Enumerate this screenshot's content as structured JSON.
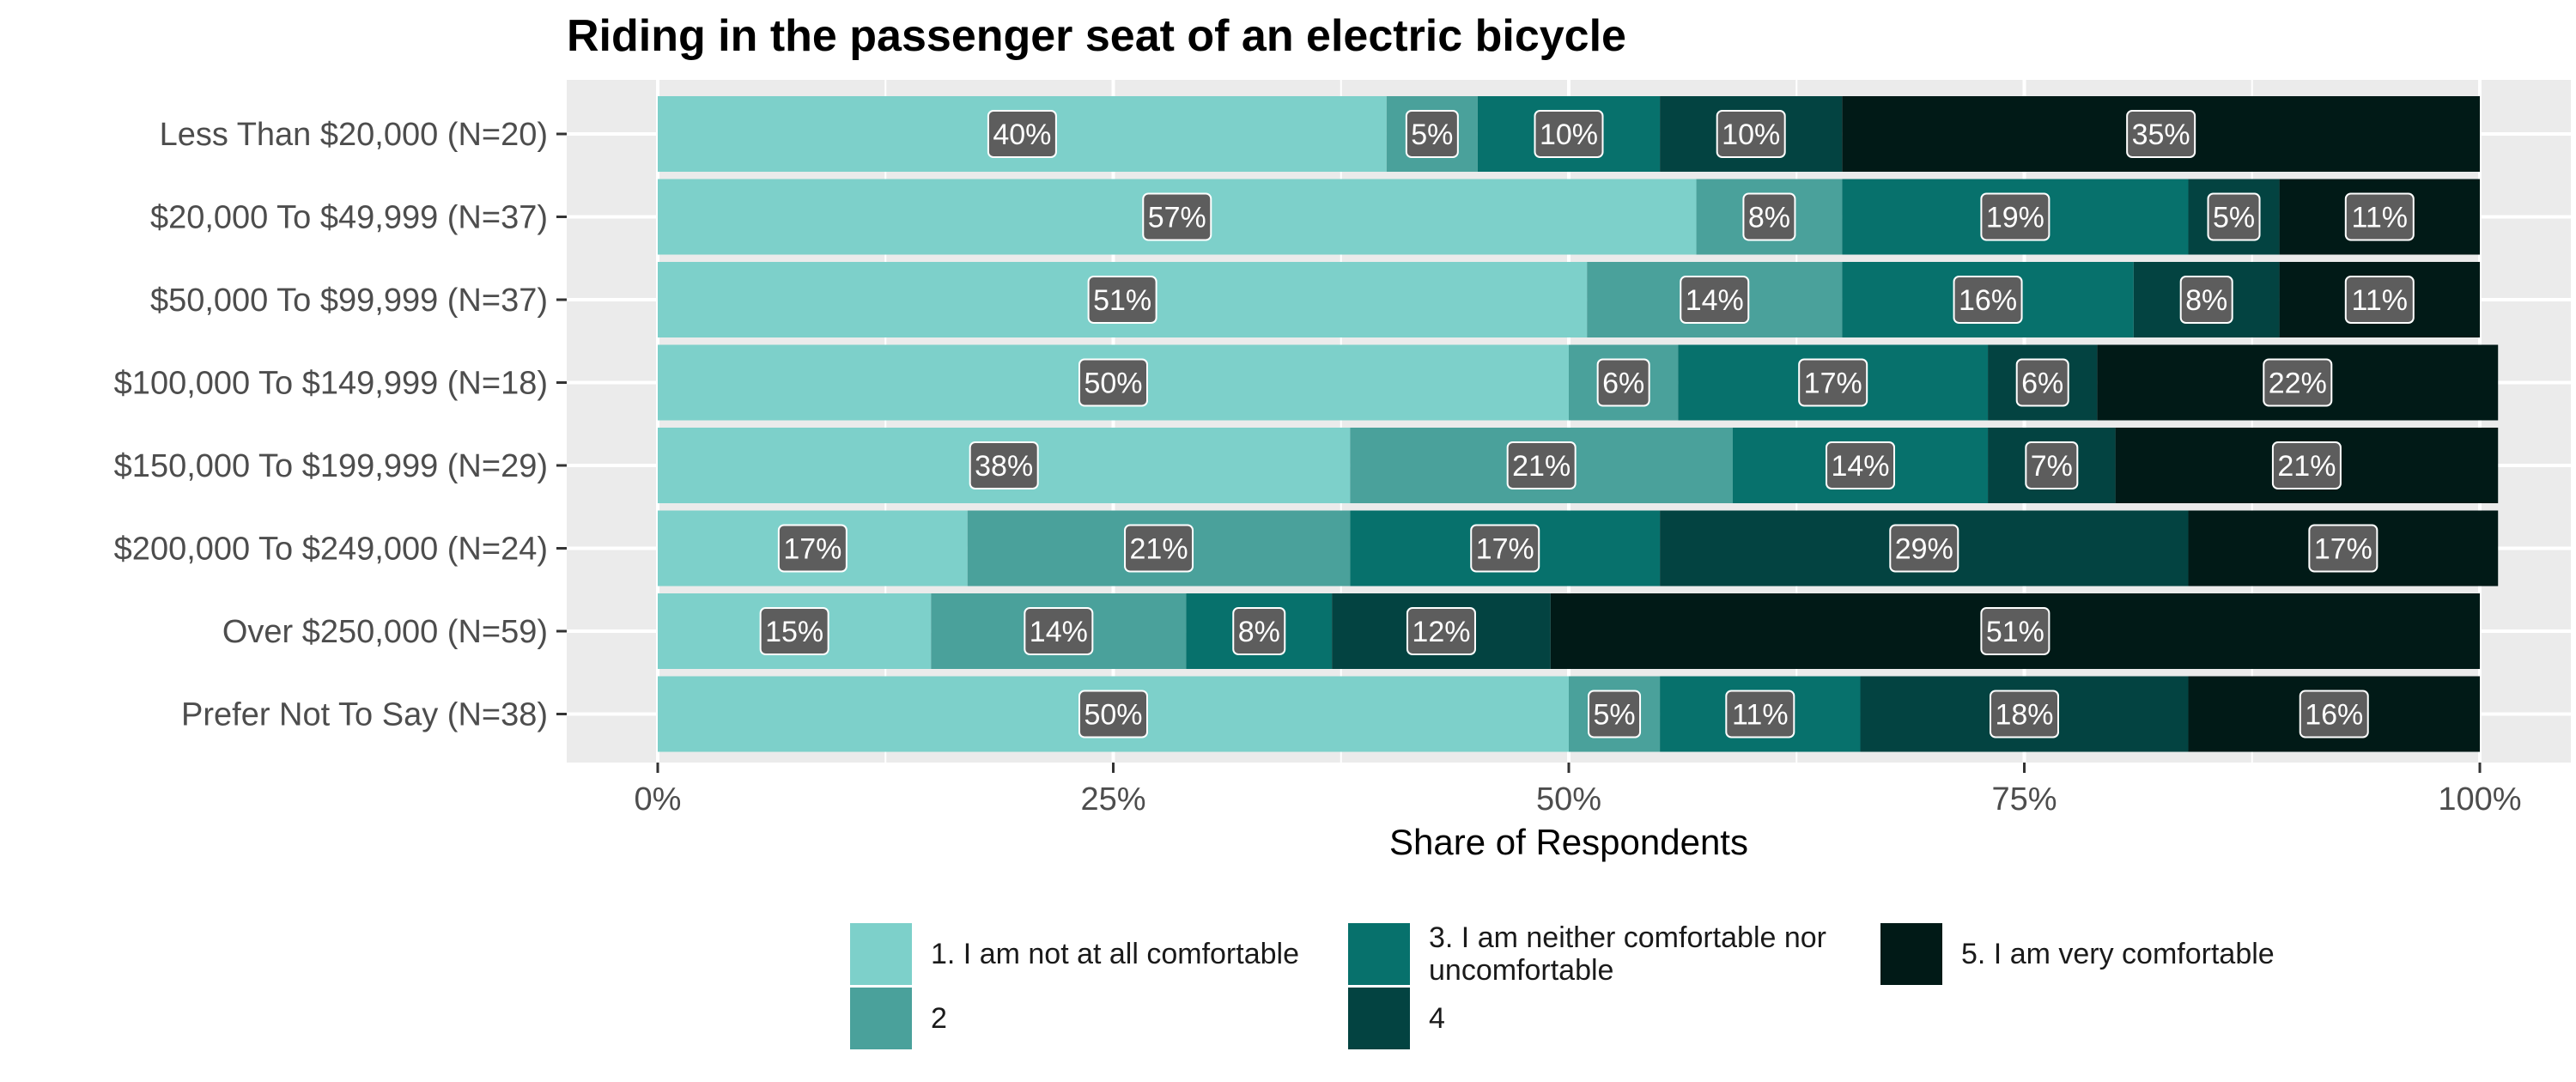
{
  "chart_data": {
    "type": "bar",
    "orientation": "horizontal",
    "stacked": true,
    "title": "Riding in the passenger seat of an electric bicycle",
    "xlabel": "Share of Respondents",
    "ylabel": "",
    "xlim": [
      0,
      100
    ],
    "x_ticks": [
      0,
      25,
      50,
      75,
      100
    ],
    "x_tick_labels": [
      "0%",
      "25%",
      "50%",
      "75%",
      "100%"
    ],
    "grid": true,
    "legend_position": "bottom",
    "categories": [
      "Less Than $20,000 (N=20)",
      "$20,000 To $49,999 (N=37)",
      "$50,000 To $99,999 (N=37)",
      "$100,000 To $149,999 (N=18)",
      "$150,000 To $199,999 (N=29)",
      "$200,000 To $249,000 (N=24)",
      "Over $250,000 (N=59)",
      "Prefer Not To Say (N=38)"
    ],
    "series": [
      {
        "name": "1. I am not at all comfortable",
        "color": "#7dd0ca",
        "values": [
          40,
          57,
          51,
          50,
          38,
          17,
          15,
          50
        ]
      },
      {
        "name": "2",
        "color": "#4aa19b",
        "values": [
          5,
          8,
          14,
          6,
          21,
          21,
          14,
          5
        ]
      },
      {
        "name": "3. I am neither comfortable nor uncomfortable",
        "color": "#07716c",
        "values": [
          10,
          19,
          16,
          17,
          14,
          17,
          8,
          11
        ]
      },
      {
        "name": "4",
        "color": "#034341",
        "values": [
          10,
          5,
          8,
          6,
          7,
          29,
          12,
          18
        ]
      },
      {
        "name": "5. I am very comfortable",
        "color": "#011a17",
        "values": [
          35,
          11,
          11,
          22,
          21,
          17,
          51,
          16
        ]
      }
    ],
    "data_labels": [
      [
        "40%",
        "5%",
        "10%",
        "10%",
        "35%"
      ],
      [
        "57%",
        "8%",
        "19%",
        "5%",
        "11%"
      ],
      [
        "51%",
        "14%",
        "16%",
        "8%",
        "11%"
      ],
      [
        "50%",
        "6%",
        "17%",
        "6%",
        "22%"
      ],
      [
        "38%",
        "21%",
        "14%",
        "7%",
        "21%"
      ],
      [
        "17%",
        "21%",
        "17%",
        "29%",
        "17%"
      ],
      [
        "15%",
        "14%",
        "8%",
        "12%",
        "51%"
      ],
      [
        "50%",
        "5%",
        "11%",
        "18%",
        "16%"
      ]
    ],
    "legend_labels": [
      [
        "1. I am not at all comfortable"
      ],
      [
        "2"
      ],
      [
        "3. I am neither comfortable nor",
        "uncomfortable"
      ],
      [
        "4"
      ],
      [
        "5. I am very comfortable"
      ]
    ],
    "colors": {
      "panel_background": "#ebebeb",
      "grid_major": "#ffffff",
      "label_box": "#5d5d5d",
      "label_text": "#ffffff",
      "axis_text": "#4d4d4d"
    }
  }
}
